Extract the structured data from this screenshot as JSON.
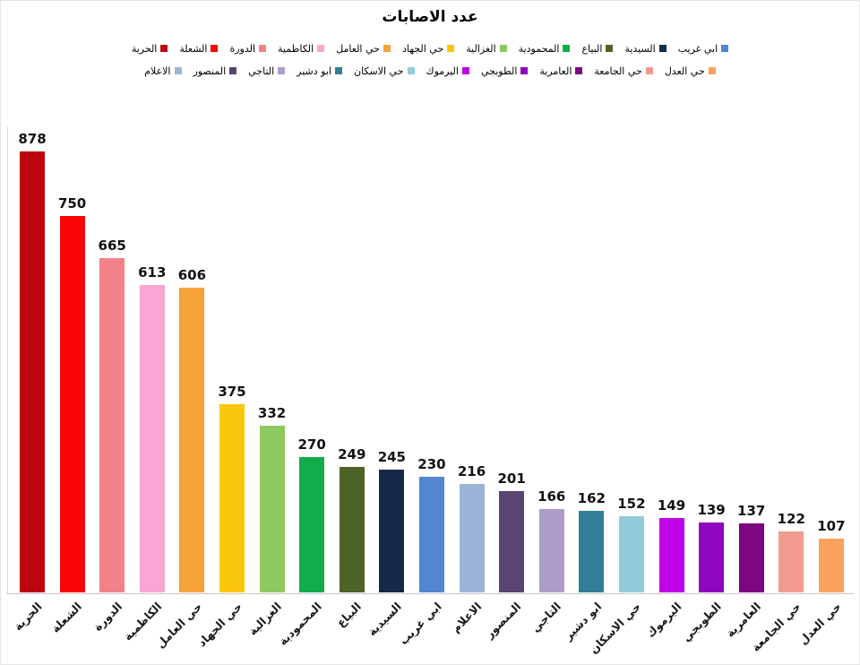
{
  "header": {
    "title": "عدد الاصابات"
  },
  "chart_data": {
    "type": "bar",
    "title": "عدد الاصابات",
    "orientation": "vertical",
    "xlabel": "",
    "ylabel": "",
    "ylim": [
      0,
      878
    ],
    "grid": false,
    "legend_position": "top",
    "legend_rows": [
      11,
      10
    ],
    "categories": [
      "الحرية",
      "الشعلة",
      "الدورة",
      "الكاظمية",
      "حي العامل",
      "حي الجهاد",
      "الغزالية",
      "المحمودية",
      "البياع",
      "السيدية",
      "ابي غريب",
      "الاعلام",
      "المنصور",
      "التاجي",
      "ابو دشير",
      "حي الاسكان",
      "اليرموك",
      "الطوبجي",
      "العامرية",
      "حي الجامعة",
      "حي العدل"
    ],
    "values": [
      878,
      750,
      665,
      613,
      606,
      375,
      332,
      270,
      249,
      245,
      230,
      216,
      201,
      166,
      162,
      152,
      149,
      139,
      137,
      122,
      107
    ],
    "series": [
      {
        "name": "الحرية",
        "value": 878,
        "color": "#BB0610"
      },
      {
        "name": "الشعلة",
        "value": 750,
        "color": "#FA0505"
      },
      {
        "name": "الدورة",
        "value": 665,
        "color": "#F28289"
      },
      {
        "name": "الكاظمية",
        "value": 613,
        "color": "#F8A6D3"
      },
      {
        "name": "حي العامل",
        "value": 606,
        "color": "#F6A23B"
      },
      {
        "name": "حي الجهاد",
        "value": 375,
        "color": "#FBC70D"
      },
      {
        "name": "الغزالية",
        "value": 332,
        "color": "#8DC95E"
      },
      {
        "name": "المحمودية",
        "value": 270,
        "color": "#12AC4B"
      },
      {
        "name": "البياع",
        "value": 249,
        "color": "#4D6327"
      },
      {
        "name": "السيدية",
        "value": 245,
        "color": "#16294A"
      },
      {
        "name": "ابي غريب",
        "value": 230,
        "color": "#5286CE"
      },
      {
        "name": "الاعلام",
        "value": 216,
        "color": "#9AB4D8"
      },
      {
        "name": "المنصور",
        "value": 201,
        "color": "#5A4474"
      },
      {
        "name": "التاجي",
        "value": 166,
        "color": "#AC9CC9"
      },
      {
        "name": "ابو دشير",
        "value": 162,
        "color": "#327E96"
      },
      {
        "name": "حي الاسكان",
        "value": 152,
        "color": "#93CBDB"
      },
      {
        "name": "اليرموك",
        "value": 149,
        "color": "#C003E9"
      },
      {
        "name": "الطوبجي",
        "value": 139,
        "color": "#8E06BF"
      },
      {
        "name": "العامرية",
        "value": 137,
        "color": "#7D0780"
      },
      {
        "name": "حي الجامعة",
        "value": 122,
        "color": "#F29B90"
      },
      {
        "name": "حي العدل",
        "value": 107,
        "color": "#F9A25E"
      }
    ]
  }
}
